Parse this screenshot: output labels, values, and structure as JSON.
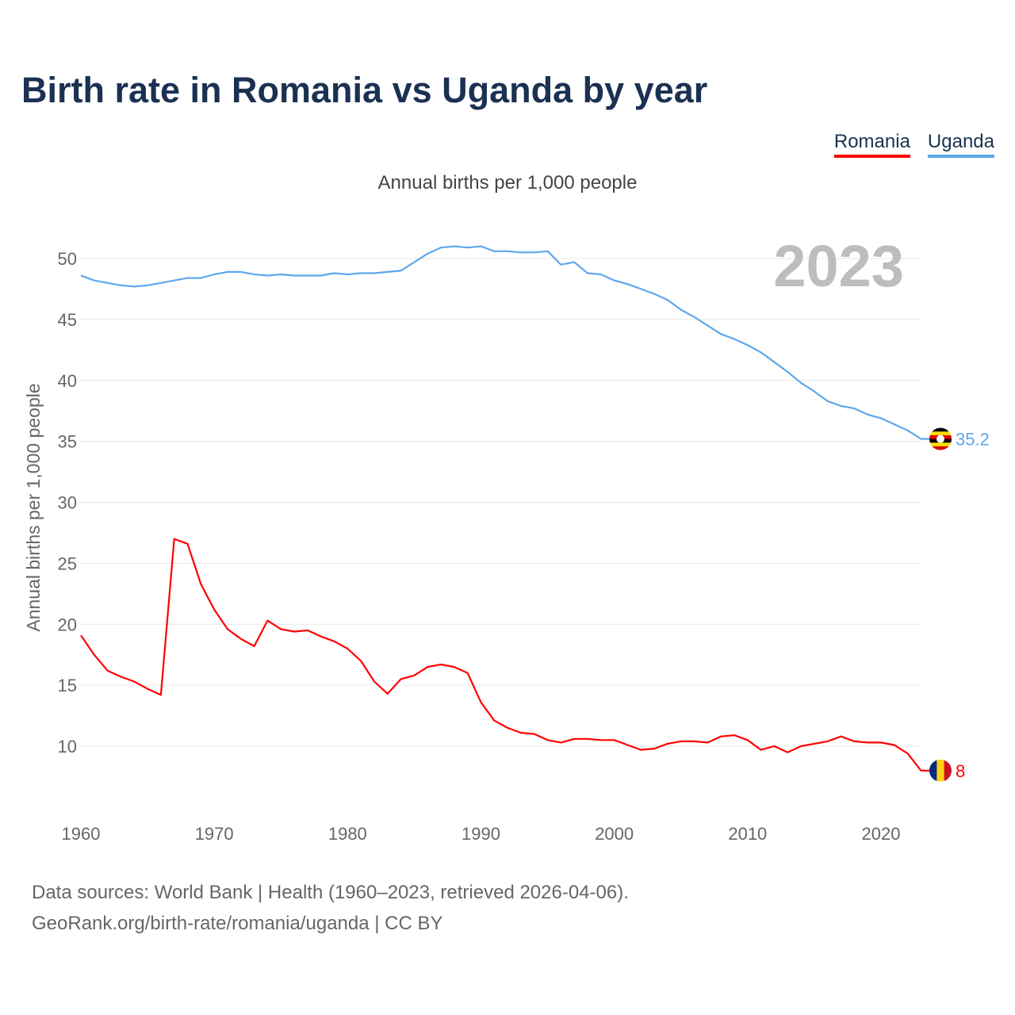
{
  "title": "Birth rate in Romania vs Uganda by year",
  "legend": [
    {
      "label": "Romania",
      "color": "#ff0000"
    },
    {
      "label": "Uganda",
      "color": "#5ea8ec"
    }
  ],
  "subtitle": "Annual births per 1,000 people",
  "year_badge": "2023",
  "footer": {
    "line1": "Data sources: World Bank | Health (1960–2023, retrieved 2026-04-06).",
    "line2": "GeoRank.org/birth-rate/romania/uganda | CC BY"
  },
  "chart_data": {
    "type": "line",
    "title": "Birth rate in Romania vs Uganda by year",
    "xlabel": "",
    "ylabel": "Annual births per 1,000 people",
    "xlim": [
      1960,
      2023
    ],
    "ylim": [
      5,
      52
    ],
    "xticks": [
      1960,
      1970,
      1980,
      1990,
      2000,
      2010,
      2020
    ],
    "yticks": [
      10,
      15,
      20,
      25,
      30,
      35,
      40,
      45,
      50
    ],
    "grid": true,
    "legend_position": "top-right",
    "x": [
      1960,
      1961,
      1962,
      1963,
      1964,
      1965,
      1966,
      1967,
      1968,
      1969,
      1970,
      1971,
      1972,
      1973,
      1974,
      1975,
      1976,
      1977,
      1978,
      1979,
      1980,
      1981,
      1982,
      1983,
      1984,
      1985,
      1986,
      1987,
      1988,
      1989,
      1990,
      1991,
      1992,
      1993,
      1994,
      1995,
      1996,
      1997,
      1998,
      1999,
      2000,
      2001,
      2002,
      2003,
      2004,
      2005,
      2006,
      2007,
      2008,
      2009,
      2010,
      2011,
      2012,
      2013,
      2014,
      2015,
      2016,
      2017,
      2018,
      2019,
      2020,
      2021,
      2022,
      2023
    ],
    "series": [
      {
        "name": "Romania",
        "color": "#ff0000",
        "end_label": "8",
        "values": [
          19.1,
          17.5,
          16.2,
          15.7,
          15.3,
          14.7,
          14.2,
          27.0,
          26.6,
          23.3,
          21.2,
          19.6,
          18.8,
          18.2,
          20.3,
          19.6,
          19.4,
          19.5,
          19.0,
          18.6,
          18.0,
          17.0,
          15.3,
          14.3,
          15.5,
          15.8,
          16.5,
          16.7,
          16.5,
          16.0,
          13.6,
          12.1,
          11.5,
          11.1,
          11.0,
          10.5,
          10.3,
          10.6,
          10.6,
          10.5,
          10.5,
          10.1,
          9.7,
          9.8,
          10.2,
          10.4,
          10.4,
          10.3,
          10.8,
          10.9,
          10.5,
          9.7,
          10.0,
          9.5,
          10.0,
          10.2,
          10.4,
          10.8,
          10.4,
          10.3,
          10.3,
          10.1,
          9.4,
          8.0
        ]
      },
      {
        "name": "Uganda",
        "color": "#5ea8ec",
        "end_label": "35.2",
        "values": [
          48.6,
          48.2,
          48.0,
          47.8,
          47.7,
          47.8,
          48.0,
          48.2,
          48.4,
          48.4,
          48.7,
          48.9,
          48.9,
          48.7,
          48.6,
          48.7,
          48.6,
          48.6,
          48.6,
          48.8,
          48.7,
          48.8,
          48.8,
          48.9,
          49.0,
          49.7,
          50.4,
          50.9,
          51.0,
          50.9,
          51.0,
          50.6,
          50.6,
          50.5,
          50.5,
          50.6,
          49.5,
          49.7,
          48.8,
          48.7,
          48.2,
          47.9,
          47.5,
          47.1,
          46.6,
          45.8,
          45.2,
          44.5,
          43.8,
          43.4,
          42.9,
          42.3,
          41.5,
          40.7,
          39.8,
          39.1,
          38.3,
          37.9,
          37.7,
          37.2,
          36.9,
          36.4,
          35.9,
          35.2
        ]
      }
    ]
  }
}
